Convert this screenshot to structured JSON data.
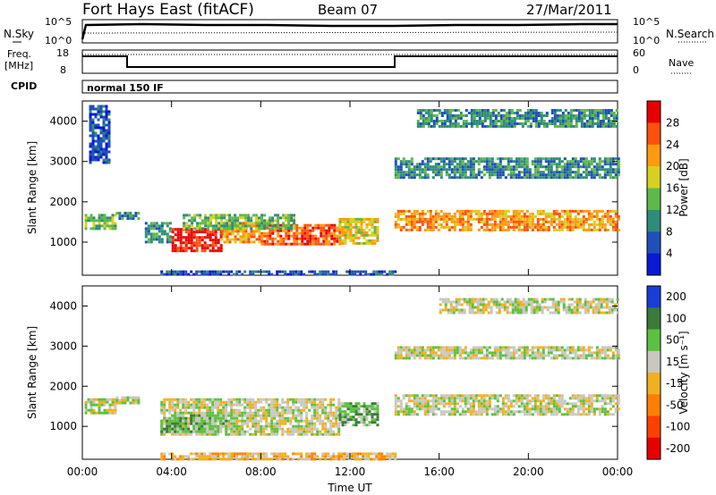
{
  "header": {
    "station": "Fort Hays East (fitACF)",
    "beam": "Beam 07",
    "date": "27/Mar/2011"
  },
  "summary": {
    "nsky_label": "N.Sky",
    "nsearch_label": "N.Search",
    "noise_ticks": [
      "10^5",
      "10^0"
    ],
    "freq_label": "Freq.",
    "freq_unit": "[MHz]",
    "freq_ticks": [
      "18",
      "8"
    ],
    "nave_label": "Nave",
    "nave_ticks": [
      "60",
      "0"
    ],
    "cpid_label": "CPID",
    "cpid_value": "normal 150 IF"
  },
  "chart_data": [
    {
      "type": "heatmap",
      "panel": "power",
      "ylabel": "Slant Range [km]",
      "xlabel": "Time UT",
      "xticks": [
        "00:00",
        "04:00",
        "08:00",
        "12:00",
        "16:00",
        "20:00",
        "00:00"
      ],
      "xlim_hours": [
        0,
        24
      ],
      "yticks": [
        1000,
        2000,
        3000,
        4000
      ],
      "ylim": [
        180,
        4500
      ],
      "colorbar": {
        "label": "Power [dB]",
        "ticks": [
          "4",
          "8",
          "12",
          "16",
          "20",
          "24",
          "28"
        ],
        "colors": [
          "#0a18d8",
          "#1e50b8",
          "#2f8c7a",
          "#5fb84a",
          "#d8d020",
          "#ff9a10",
          "#ff5010",
          "#e80000"
        ]
      },
      "regions": [
        {
          "t": [
            0.1,
            1.5
          ],
          "r": [
            1350,
            1700
          ],
          "level": 3
        },
        {
          "t": [
            0.3,
            1.2
          ],
          "r": [
            3000,
            4400
          ],
          "level": 1
        },
        {
          "t": [
            1.5,
            2.5
          ],
          "r": [
            1600,
            1750
          ],
          "level": 2
        },
        {
          "t": [
            2.8,
            4.0
          ],
          "r": [
            1000,
            1500
          ],
          "level": 2
        },
        {
          "t": [
            4.0,
            6.2
          ],
          "r": [
            800,
            1350
          ],
          "level": 7
        },
        {
          "t": [
            6.2,
            8.0
          ],
          "r": [
            1000,
            1500
          ],
          "level": 5
        },
        {
          "t": [
            8.0,
            11.5
          ],
          "r": [
            950,
            1450
          ],
          "level": 6
        },
        {
          "t": [
            4.5,
            9.5
          ],
          "r": [
            1350,
            1700
          ],
          "level": 3
        },
        {
          "t": [
            11.5,
            13.2
          ],
          "r": [
            1000,
            1600
          ],
          "level": 4
        },
        {
          "t": [
            14.0,
            24.0
          ],
          "r": [
            1300,
            1800
          ],
          "level": 5
        },
        {
          "t": [
            14.0,
            24.0
          ],
          "r": [
            2600,
            3100
          ],
          "level": 2
        },
        {
          "t": [
            15.0,
            24.0
          ],
          "r": [
            3900,
            4300
          ],
          "level": 2
        },
        {
          "t": [
            3.5,
            14.0
          ],
          "r": [
            200,
            300
          ],
          "level": 1
        }
      ]
    },
    {
      "type": "heatmap",
      "panel": "velocity",
      "ylabel": "Slant Range [km]",
      "xlabel": "Time UT",
      "xticks": [
        "00:00",
        "04:00",
        "08:00",
        "12:00",
        "16:00",
        "20:00",
        "00:00"
      ],
      "xlim_hours": [
        0,
        24
      ],
      "yticks": [
        1000,
        2000,
        3000,
        4000
      ],
      "ylim": [
        180,
        4500
      ],
      "colorbar": {
        "label": "Velocity [m s⁻¹]",
        "ticks": [
          "200",
          "100",
          "50",
          "15",
          "-15",
          "-50",
          "-100",
          "-200"
        ],
        "colors": [
          "#1a3cd8",
          "#3a7a3a",
          "#5cc040",
          "#c8c8c0",
          "#f0b020",
          "#ff8000",
          "#ff4000",
          "#e80000"
        ]
      },
      "regions": [
        {
          "t": [
            0.1,
            1.5
          ],
          "r": [
            1300,
            1700
          ],
          "level": 3
        },
        {
          "t": [
            1.5,
            2.5
          ],
          "r": [
            1600,
            1750
          ],
          "level": 3
        },
        {
          "t": [
            3.5,
            11.5
          ],
          "r": [
            800,
            1700
          ],
          "level": 3
        },
        {
          "t": [
            3.5,
            6.5
          ],
          "r": [
            850,
            1300
          ],
          "level": 2
        },
        {
          "t": [
            11.5,
            13.2
          ],
          "r": [
            1000,
            1600
          ],
          "level": 2
        },
        {
          "t": [
            14.0,
            24.0
          ],
          "r": [
            1300,
            1800
          ],
          "level": 3
        },
        {
          "t": [
            14.0,
            24.0
          ],
          "r": [
            2700,
            3000
          ],
          "level": 3
        },
        {
          "t": [
            16.0,
            24.0
          ],
          "r": [
            3800,
            4200
          ],
          "level": 3
        },
        {
          "t": [
            3.5,
            14.0
          ],
          "r": [
            200,
            350
          ],
          "level": 4
        }
      ]
    }
  ]
}
